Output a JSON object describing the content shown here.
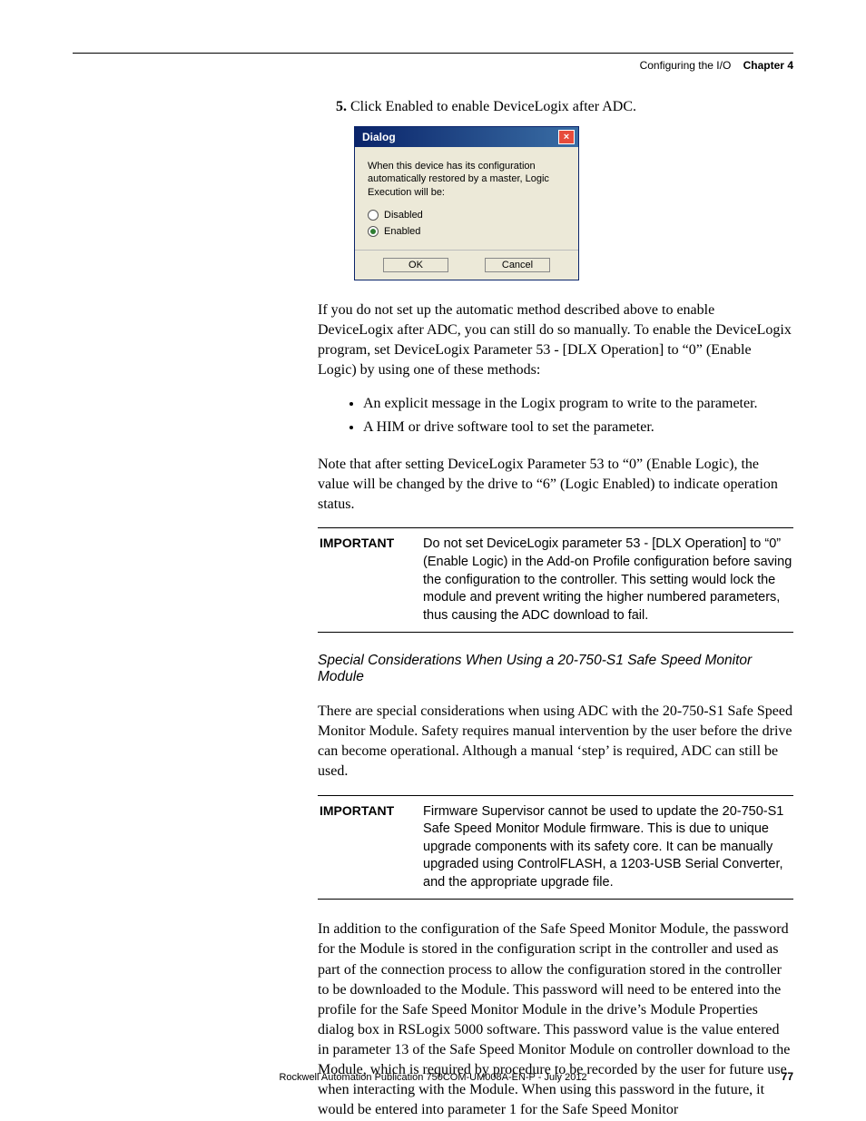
{
  "header": {
    "section": "Configuring the I/O",
    "chapter": "Chapter 4"
  },
  "step": {
    "number": "5.",
    "text": "Click Enabled to enable DeviceLogix after ADC."
  },
  "dialog": {
    "title": "Dialog",
    "message": "When this device has its configuration automatically restored by a master, Logic Execution will be:",
    "option_disabled": "Disabled",
    "option_enabled": "Enabled",
    "ok": "OK",
    "cancel": "Cancel"
  },
  "para1": "If you do not set up the automatic method described above to enable DeviceLogix after ADC, you can still do so manually. To enable the DeviceLogix program, set DeviceLogix Parameter 53 - [DLX Operation] to “0” (Enable Logic) by using one of these methods:",
  "bullets": [
    "An explicit message in the Logix program to write to the parameter.",
    "A HIM or drive software tool to set the parameter."
  ],
  "para2": "Note that after setting DeviceLogix Parameter 53 to “0” (Enable Logic), the value will be changed by the drive to “6” (Logic Enabled) to indicate operation status.",
  "important1": {
    "label": "IMPORTANT",
    "text": "Do not set DeviceLogix parameter 53 - [DLX Operation] to “0” (Enable Logic) in the Add-on Profile configuration before saving the configuration to the controller. This setting would lock the module and prevent writing the higher numbered parameters, thus causing the ADC download to fail."
  },
  "subhead": "Special Considerations When Using a 20-750-S1 Safe Speed Monitor Module",
  "para3": "There are special considerations when using ADC with the 20-750-S1 Safe Speed Monitor Module. Safety requires manual intervention by the user before the drive can become operational. Although a manual ‘step’ is required, ADC can still be used.",
  "important2": {
    "label": "IMPORTANT",
    "text": "Firmware Supervisor cannot be used to update the 20-750-S1 Safe Speed Monitor Module firmware. This is due to unique upgrade components with its safety core. It can be manually upgraded using ControlFLASH, a 1203-USB Serial Converter, and the appropriate upgrade file."
  },
  "para4": "In addition to the configuration of the Safe Speed Monitor Module, the password for the Module is stored in the configuration script in the controller and used as part of the connection process to allow the configuration stored in the controller to be downloaded to the Module. This password will need to be entered into the profile for the Safe Speed Monitor Module in the drive’s Module Properties dialog box in RSLogix 5000 software. This password value is the value entered in parameter 13 of the Safe Speed Monitor Module on controller download to the Module, which is required by procedure to be recorded by the user for future use when interacting with the Module. When using this password in the future, it would be entered into parameter 1 for the Safe Speed Monitor",
  "footer": {
    "pub": "Rockwell Automation Publication 750COM-UM008A-EN-P - July 2012",
    "page": "77"
  }
}
